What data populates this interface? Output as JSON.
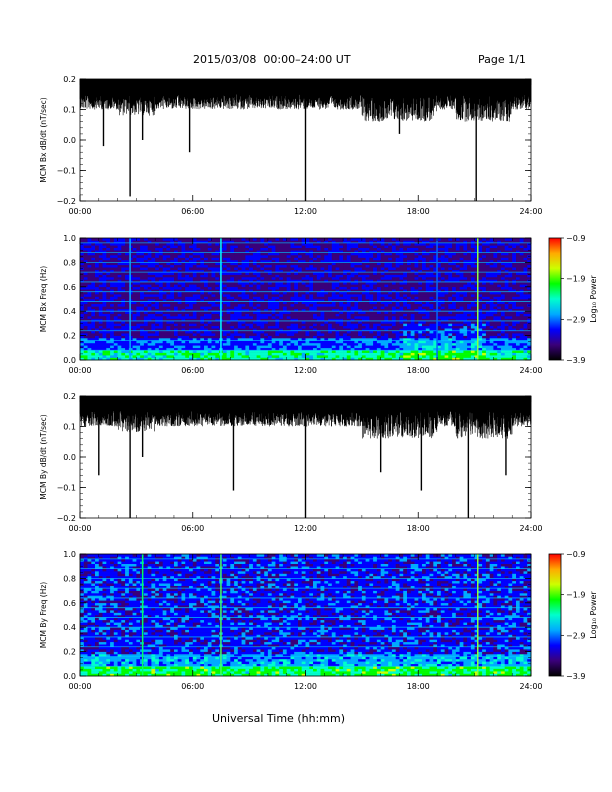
{
  "header": {
    "date_range": "2015/03/08  00:00–24:00 UT",
    "page": "Page 1/1"
  },
  "footer": {
    "xlabel": "Universal Time (hh:mm)"
  },
  "colors": {
    "trace": "#000000",
    "spectro_bg": "#2a0a55",
    "colormap": [
      "#000000",
      "#3a007a",
      "#0000ff",
      "#00aaff",
      "#00ffcc",
      "#00ff00",
      "#ccff00",
      "#ffaa00",
      "#ff0000"
    ]
  },
  "chart_data": [
    {
      "type": "line",
      "ylabel": "MCM Bx dB/dt (nT/sec)",
      "xlim": [
        "00:00",
        "24:00"
      ],
      "ylim": [
        -0.2,
        0.2
      ],
      "yticks": [
        "0.2",
        "0.1",
        "0.0",
        "−0.1",
        "−0.2"
      ],
      "xticks": [
        "00:00",
        "06:00",
        "12:00",
        "18:00",
        "24:00"
      ],
      "baseline": 0.15,
      "spikes": [
        {
          "t": "01:15",
          "y": -0.02
        },
        {
          "t": "02:40",
          "y": -0.185
        },
        {
          "t": "03:20",
          "y": 0.0
        },
        {
          "t": "05:50",
          "y": -0.04
        },
        {
          "t": "12:00",
          "y": -0.2
        },
        {
          "t": "16:10",
          "y": 0.07
        },
        {
          "t": "17:00",
          "y": 0.02
        },
        {
          "t": "21:05",
          "y": -0.2
        }
      ]
    },
    {
      "type": "heatmap",
      "ylabel": "MCM Bx Freq (Hz)",
      "xlim": [
        "00:00",
        "24:00"
      ],
      "ylim": [
        0.0,
        1.0
      ],
      "yticks": [
        "1.0",
        "0.8",
        "0.6",
        "0.4",
        "0.2",
        "0.0"
      ],
      "xticks": [
        "00:00",
        "06:00",
        "12:00",
        "18:00",
        "24:00"
      ],
      "colorbar": {
        "label": "Log₁₀ Power",
        "range": [
          -3.9,
          -0.9
        ],
        "ticks": [
          "−0.9",
          "−1.9",
          "−2.9",
          "−3.9"
        ]
      },
      "bright_lines": [
        {
          "t": "02:40",
          "color": "#00aaff"
        },
        {
          "t": "07:30",
          "color": "#00ffff"
        },
        {
          "t": "19:00",
          "color": "#0066ff"
        },
        {
          "t": "21:10",
          "color": "#88ff44"
        }
      ]
    },
    {
      "type": "line",
      "ylabel": "MCM By dB/dt (nT/sec)",
      "xlim": [
        "00:00",
        "24:00"
      ],
      "ylim": [
        -0.2,
        0.2
      ],
      "yticks": [
        "0.2",
        "0.1",
        "0.0",
        "−0.1",
        "−0.2"
      ],
      "xticks": [
        "00:00",
        "06:00",
        "12:00",
        "18:00",
        "24:00"
      ],
      "baseline": 0.15,
      "spikes": [
        {
          "t": "01:00",
          "y": -0.06
        },
        {
          "t": "02:40",
          "y": -0.2
        },
        {
          "t": "03:20",
          "y": 0.0
        },
        {
          "t": "08:10",
          "y": -0.11
        },
        {
          "t": "12:00",
          "y": -0.2
        },
        {
          "t": "16:00",
          "y": -0.05
        },
        {
          "t": "18:10",
          "y": -0.11
        },
        {
          "t": "20:40",
          "y": -0.2
        },
        {
          "t": "22:40",
          "y": -0.06
        }
      ]
    },
    {
      "type": "heatmap",
      "ylabel": "MCM By Freq (Hz)",
      "xlim": [
        "00:00",
        "24:00"
      ],
      "ylim": [
        0.0,
        1.0
      ],
      "yticks": [
        "1.0",
        "0.8",
        "0.6",
        "0.4",
        "0.2",
        "0.0"
      ],
      "xticks": [
        "00:00",
        "06:00",
        "12:00",
        "18:00",
        "24:00"
      ],
      "colorbar": {
        "label": "Log₁₀ Power",
        "range": [
          -3.9,
          -0.9
        ],
        "ticks": [
          "−0.9",
          "−1.9",
          "−2.9",
          "−3.9"
        ]
      },
      "bright_lines": [
        {
          "t": "03:20",
          "color": "#00ff66"
        },
        {
          "t": "07:30",
          "color": "#44ff66"
        },
        {
          "t": "21:10",
          "color": "#88ff44"
        }
      ]
    }
  ]
}
